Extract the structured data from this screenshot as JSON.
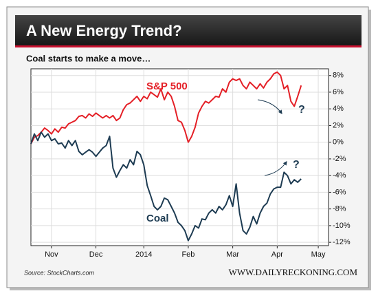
{
  "chart_data": {
    "type": "line",
    "title": "A New Energy Trend?",
    "subtitle": "Coal starts to make a move…",
    "x": [
      0,
      1,
      2,
      3,
      4,
      5,
      6,
      7,
      8,
      9,
      10,
      11,
      12,
      13,
      14,
      15,
      16,
      17,
      18,
      19,
      20,
      21,
      22,
      23,
      24,
      25,
      26,
      27,
      28,
      29,
      30,
      31,
      32,
      33,
      34,
      35,
      36,
      37,
      38,
      39,
      40,
      41,
      42,
      43,
      44,
      45,
      46,
      47,
      48,
      49,
      50,
      51,
      52,
      53,
      54,
      55,
      56,
      57,
      58,
      59,
      60,
      61,
      62,
      63,
      64,
      65,
      66,
      67,
      68,
      69,
      70,
      71,
      72,
      73,
      74,
      75,
      76,
      77,
      78,
      79
    ],
    "xlim": [
      0,
      87
    ],
    "xticks": [
      {
        "value": 6,
        "label": "Nov"
      },
      {
        "value": 19,
        "label": "Dec"
      },
      {
        "value": 33,
        "label": "2014"
      },
      {
        "value": 46,
        "label": "Feb"
      },
      {
        "value": 59,
        "label": "Mar"
      },
      {
        "value": 72,
        "label": "Apr"
      },
      {
        "value": 84,
        "label": "May"
      }
    ],
    "ylim": [
      -12.4,
      8.8
    ],
    "yticks": [
      {
        "value": -12,
        "label": "-12%"
      },
      {
        "value": -10,
        "label": "-10%"
      },
      {
        "value": -8,
        "label": "-8%"
      },
      {
        "value": -6,
        "label": "-6%"
      },
      {
        "value": -4,
        "label": "-4%"
      },
      {
        "value": -2,
        "label": "-2%"
      },
      {
        "value": 0,
        "label": "0%"
      },
      {
        "value": 2,
        "label": "2%"
      },
      {
        "value": 4,
        "label": "4%"
      },
      {
        "value": 6,
        "label": "6%"
      },
      {
        "value": 8,
        "label": "8%"
      }
    ],
    "grid": true,
    "series": [
      {
        "name": "S&P 500",
        "color": "#e41f26",
        "values": [
          -0.2,
          0.6,
          0.8,
          1.2,
          1.7,
          1.4,
          1.0,
          1.6,
          1.2,
          1.8,
          1.7,
          2.2,
          2.4,
          2.6,
          3.1,
          3.2,
          2.9,
          3.4,
          3.1,
          3.5,
          3.2,
          2.9,
          3.2,
          2.9,
          3.2,
          2.6,
          2.9,
          3.9,
          4.5,
          4.7,
          5.1,
          5.5,
          4.9,
          5.5,
          5.2,
          6.0,
          5.7,
          5.4,
          6.4,
          5.1,
          6.0,
          5.5,
          4.3,
          2.6,
          2.4,
          1.4,
          0,
          0.7,
          1.8,
          3.5,
          4.3,
          4.9,
          4.7,
          5.1,
          5.5,
          5.4,
          6.4,
          6.0,
          7.2,
          7.6,
          7.4,
          7.6,
          6.8,
          6.4,
          7.2,
          6.8,
          6.4,
          7.0,
          6.5,
          7.2,
          7.6,
          8.2,
          8.4,
          8.0,
          6.4,
          6.8,
          4.9,
          4.3,
          5.5,
          6.8
        ]
      },
      {
        "name": "Coal",
        "color": "#1d3b52",
        "values": [
          -0.2,
          1.0,
          0.2,
          1.2,
          0.6,
          1.0,
          0.2,
          0.4,
          -0.2,
          -0.1,
          -0.7,
          0.2,
          -0.4,
          0.2,
          -1.1,
          -1.5,
          -1.2,
          -0.9,
          -1.2,
          -1.7,
          -1.2,
          -0.7,
          -0.4,
          0.7,
          -3.1,
          -4.2,
          -3.4,
          -2.7,
          -3.1,
          -2.1,
          -2.7,
          -1.1,
          -1.5,
          -2.7,
          -5.2,
          -6.4,
          -7.7,
          -8.1,
          -7.7,
          -6.7,
          -6.9,
          -7.7,
          -8.5,
          -9.6,
          -10.0,
          -10.6,
          -11.8,
          -11.0,
          -10.0,
          -10.3,
          -9.2,
          -9.3,
          -8.5,
          -8.1,
          -8.5,
          -7.7,
          -8.1,
          -7.5,
          -6.4,
          -7.7,
          -5.0,
          -8.5,
          -10.6,
          -11.0,
          -10.2,
          -8.9,
          -9.8,
          -8.5,
          -7.7,
          -7.3,
          -6.2,
          -5.6,
          -5.4,
          -5.4,
          -3.6,
          -4.0,
          -5.0,
          -4.5,
          -4.8,
          -4.4
        ]
      }
    ],
    "annotations": [
      "?",
      "?"
    ]
  },
  "footer": {
    "source": "Source: StockCharts.com",
    "site": "WWW.DAILYRECKONING.COM"
  }
}
